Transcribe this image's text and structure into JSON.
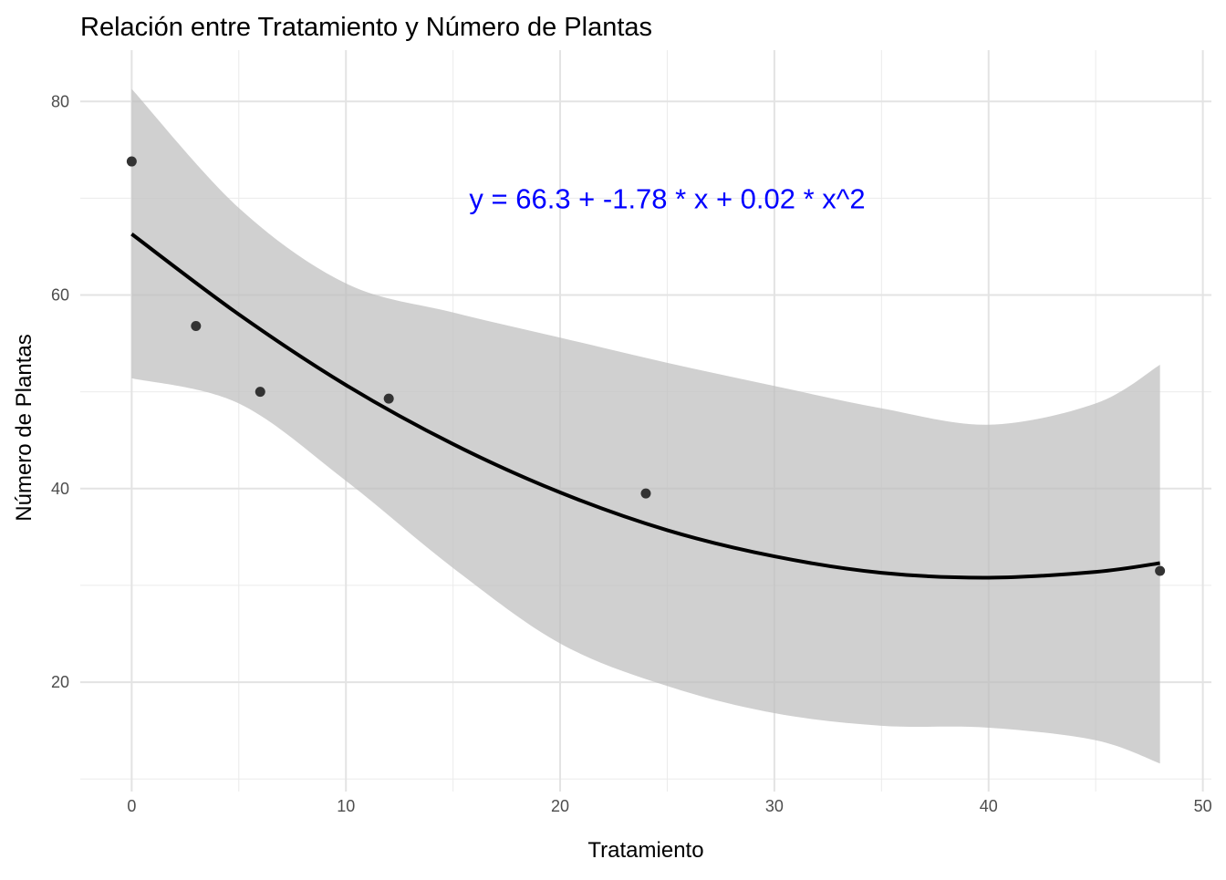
{
  "chart_data": {
    "type": "scatter",
    "title": "Relación entre Tratamiento y Número de Plantas",
    "xlabel": "Tratamiento",
    "ylabel": "Número de Plantas",
    "xlim": [
      -2.4,
      50.4
    ],
    "ylim": [
      8.7,
      85.3
    ],
    "xticks": [
      0,
      10,
      20,
      30,
      40,
      50
    ],
    "yticks": [
      20,
      40,
      60,
      80
    ],
    "grid": true,
    "points": {
      "x": [
        0,
        3,
        6,
        12,
        24,
        48
      ],
      "y": [
        73.8,
        56.8,
        50.0,
        49.3,
        39.5,
        31.5
      ],
      "color": "#333333"
    },
    "fit": {
      "type": "quadratic",
      "x": [
        0,
        5,
        10,
        15,
        20,
        25,
        30,
        35,
        40,
        45,
        48
      ],
      "y": [
        66.3,
        58.0,
        50.7,
        44.6,
        39.6,
        35.7,
        33.0,
        31.3,
        30.8,
        31.4,
        32.3
      ],
      "ci_upper": [
        81.3,
        69.0,
        61.2,
        58.2,
        55.6,
        53.0,
        50.6,
        48.3,
        46.6,
        48.8,
        52.8
      ],
      "ci_lower": [
        51.4,
        48.8,
        40.8,
        31.8,
        24.0,
        19.6,
        16.8,
        15.5,
        15.3,
        14.0,
        11.6
      ],
      "line_color": "#000000",
      "ribbon_color": "#bebebe"
    },
    "annotation": {
      "text": "y = 66.3 + -1.78 * x + 0.02 * x^2",
      "x": 25,
      "y": 70,
      "color": "#0000ff"
    }
  }
}
